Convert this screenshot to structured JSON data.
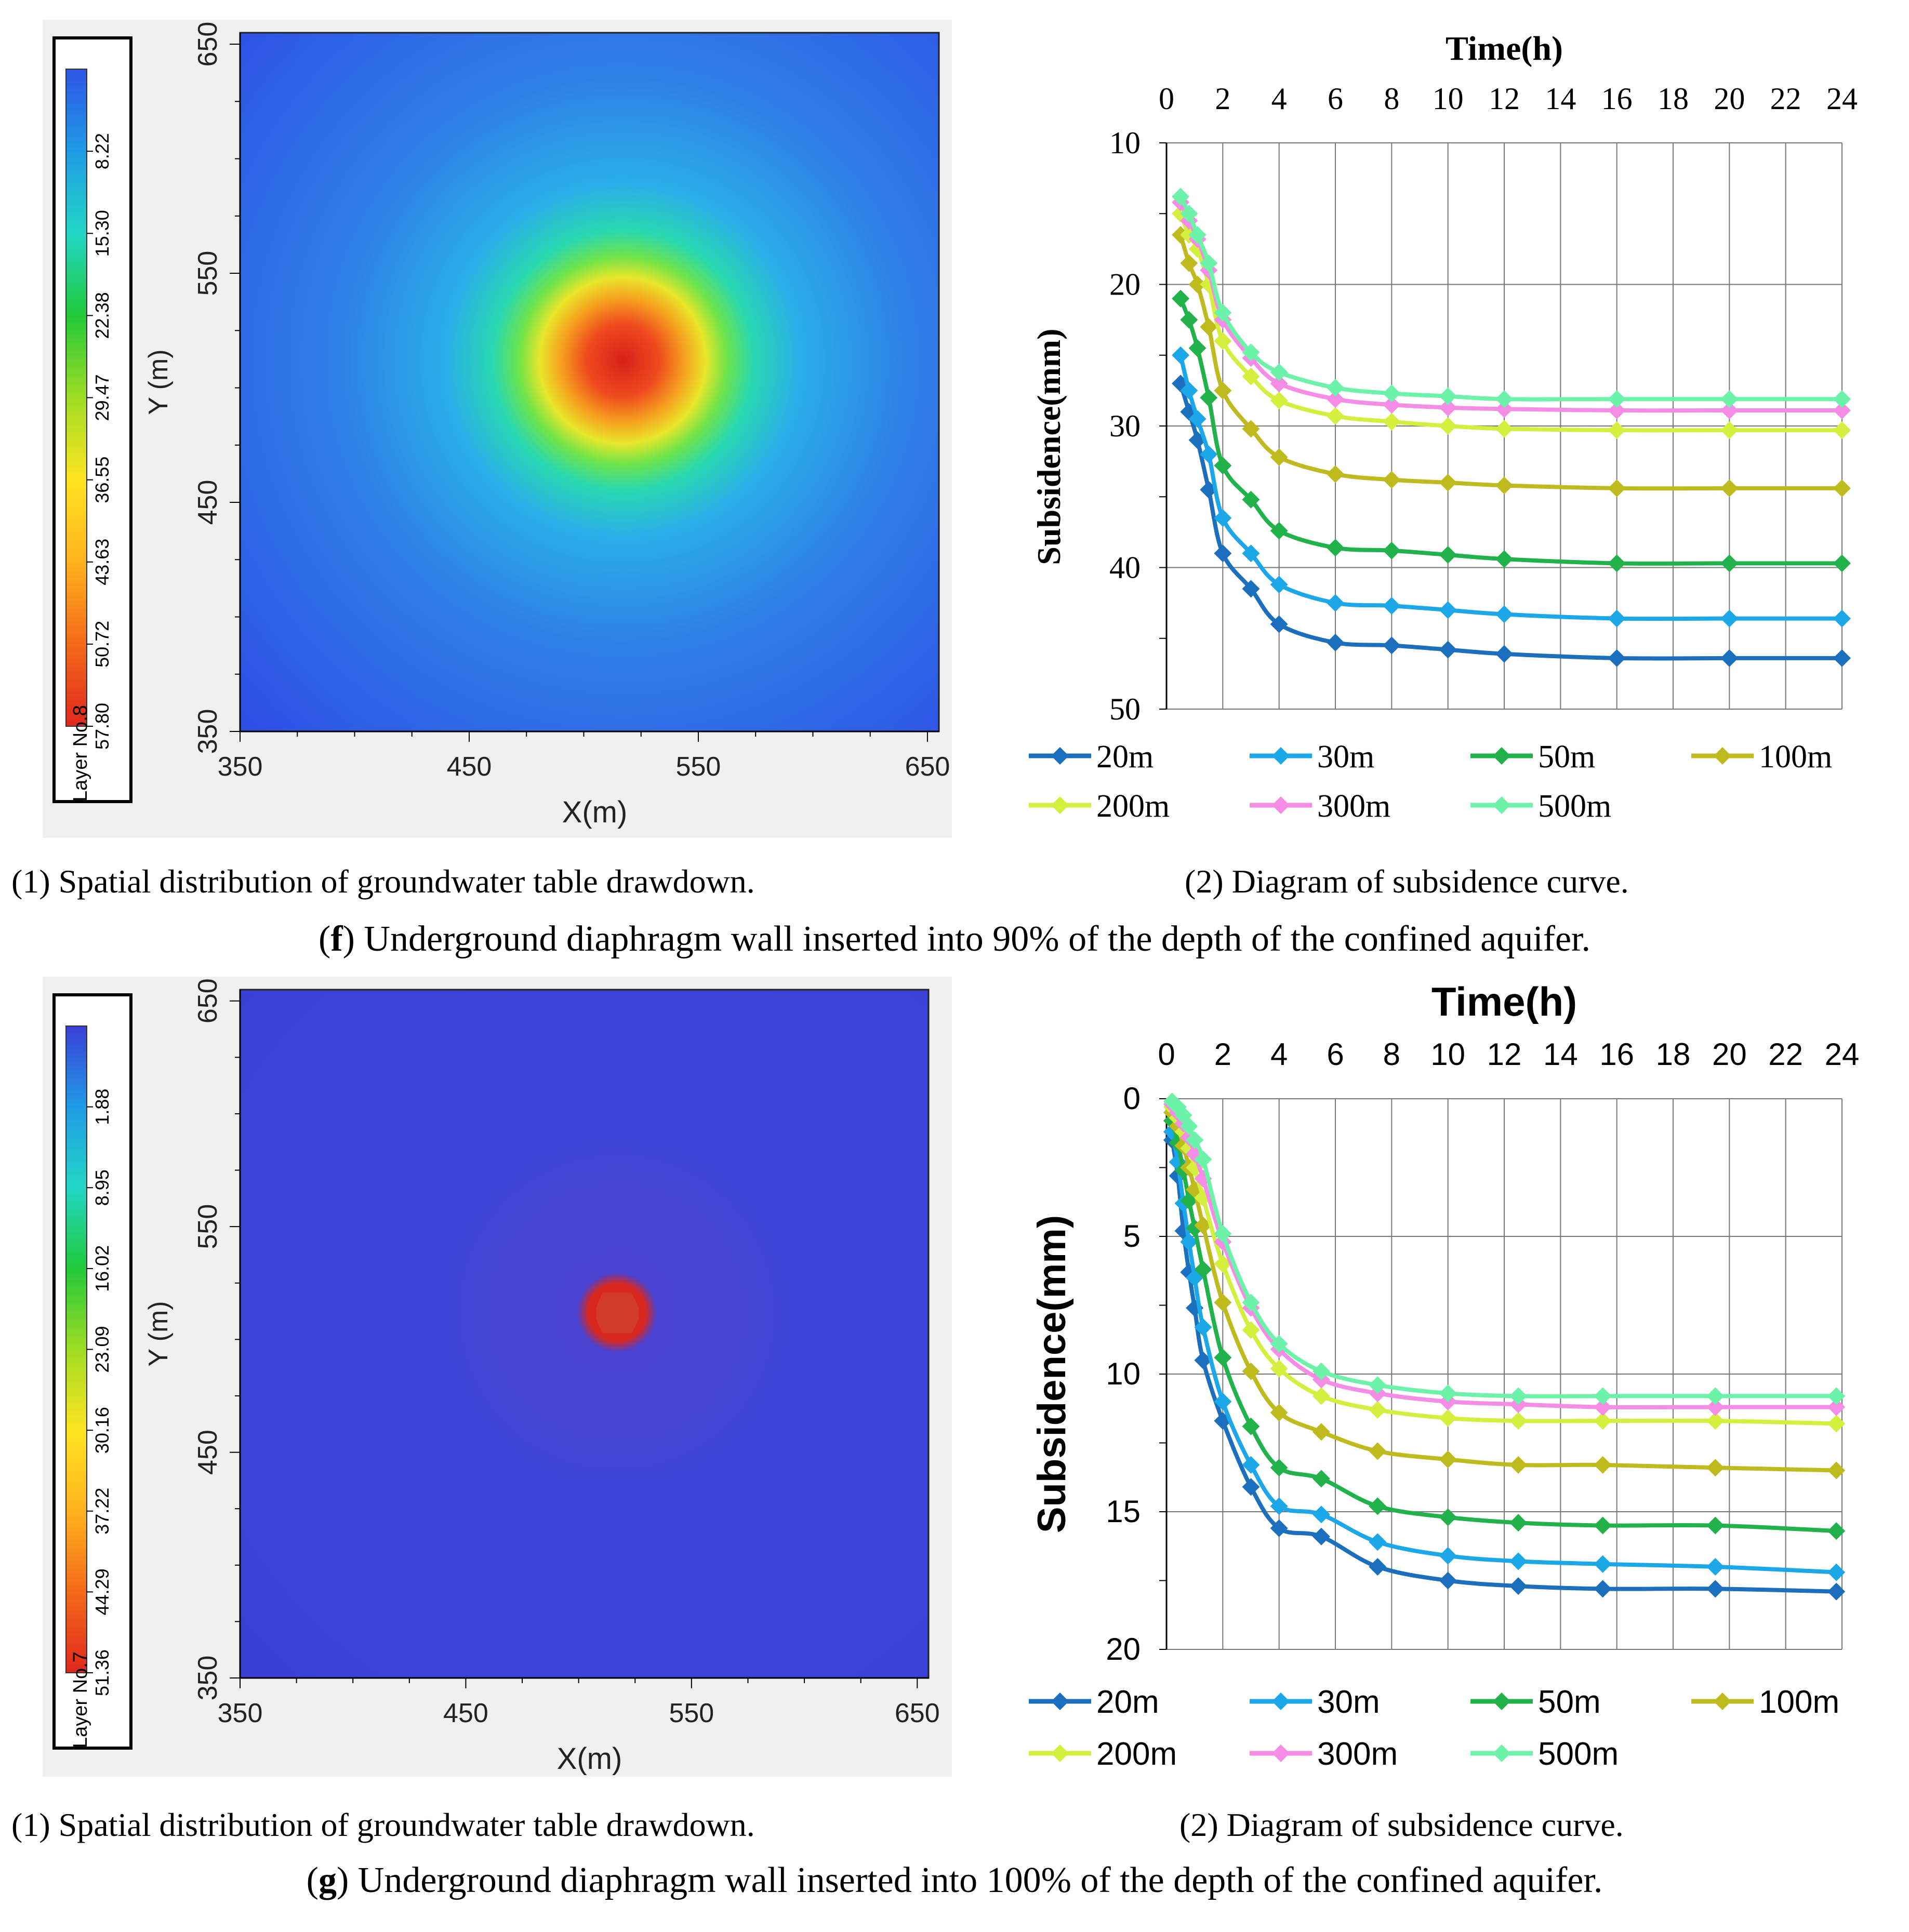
{
  "figures": [
    {
      "label": "f",
      "caption_rest": ") Underground diaphragm wall inserted into 90% of the depth of the confined aquifer.",
      "contour": {
        "caption": "(1) Spatial distribution of groundwater table drawdown.",
        "layer": "Layer No.8",
        "legend_values": [
          "57.80",
          "50.72",
          "43.63",
          "36.55",
          "29.47",
          "22.38",
          "15.30",
          "8.22"
        ],
        "legend_colors": [
          "#e0281e",
          "#f46a1a",
          "#ffb21e",
          "#ffe423",
          "#9fdc23",
          "#21c93a",
          "#22d6c5",
          "#1f9be6",
          "#2e55e5"
        ],
        "background_color": "#2e4fe6",
        "x_ticks": [
          "350",
          "450",
          "550",
          "650"
        ],
        "y_ticks": [
          "650",
          "550",
          "450",
          "350"
        ],
        "xlabel": "X(m)",
        "ylabel": "Y (m)",
        "axis_range": [
          350,
          655
        ],
        "center": [
          517,
          512
        ],
        "plume": "wide"
      },
      "chart_data": {
        "type": "line",
        "title": "Time(h)",
        "xlabel": "Time(h)",
        "ylabel": "Subsidence(mm)",
        "x_ticks": [
          0,
          2,
          4,
          6,
          8,
          10,
          12,
          14,
          16,
          18,
          20,
          22,
          24
        ],
        "y_ticks": [
          10,
          20,
          30,
          40,
          50
        ],
        "xlim": [
          0,
          24
        ],
        "ylim": [
          10,
          50
        ],
        "y_inverted": true,
        "series": [
          {
            "name": "20m",
            "color": "#1b6fbc",
            "x": [
              0.5,
              0.8,
              1.1,
              1.5,
              2.0,
              3.0,
              4.0,
              6.0,
              8.0,
              10.0,
              12.0,
              16.0,
              20.0,
              24.0
            ],
            "values": [
              27,
              29,
              31,
              34.5,
              39,
              41.5,
              44,
              45.3,
              45.5,
              45.8,
              46.1,
              46.4,
              46.4,
              46.4
            ]
          },
          {
            "name": "30m",
            "color": "#1ba7e8",
            "x": [
              0.5,
              0.8,
              1.1,
              1.5,
              2.0,
              3.0,
              4.0,
              6.0,
              8.0,
              10.0,
              12.0,
              16.0,
              20.0,
              24.0
            ],
            "values": [
              25,
              27.5,
              29.5,
              32,
              36.5,
              39,
              41.2,
              42.5,
              42.7,
              43,
              43.3,
              43.6,
              43.6,
              43.6
            ]
          },
          {
            "name": "50m",
            "color": "#22b24c",
            "x": [
              0.5,
              0.8,
              1.1,
              1.5,
              2.0,
              3.0,
              4.0,
              6.0,
              8.0,
              10.0,
              12.0,
              16.0,
              20.0,
              24.0
            ],
            "values": [
              21,
              22.5,
              24.5,
              28,
              32.8,
              35.2,
              37.4,
              38.6,
              38.8,
              39.1,
              39.4,
              39.7,
              39.7,
              39.7
            ]
          },
          {
            "name": "100m",
            "color": "#bfbb1f",
            "x": [
              0.5,
              0.8,
              1.1,
              1.5,
              2.0,
              3.0,
              4.0,
              6.0,
              8.0,
              10.0,
              12.0,
              16.0,
              20.0,
              24.0
            ],
            "values": [
              16.5,
              18.5,
              20,
              23,
              27.5,
              30.2,
              32.2,
              33.4,
              33.8,
              34,
              34.2,
              34.4,
              34.4,
              34.4
            ]
          },
          {
            "name": "200m",
            "color": "#d4ef3e",
            "x": [
              0.5,
              0.8,
              1.1,
              1.5,
              2.0,
              3.0,
              4.0,
              6.0,
              8.0,
              10.0,
              12.0,
              16.0,
              20.0,
              24.0
            ],
            "values": [
              15,
              16.5,
              17.5,
              20,
              24,
              26.5,
              28.2,
              29.3,
              29.7,
              30,
              30.2,
              30.3,
              30.3,
              30.3
            ]
          },
          {
            "name": "300m",
            "color": "#f58ce6",
            "x": [
              0.5,
              0.8,
              1.1,
              1.5,
              2.0,
              3.0,
              4.0,
              6.0,
              8.0,
              10.0,
              12.0,
              16.0,
              20.0,
              24.0
            ],
            "values": [
              14.2,
              15.5,
              16.8,
              19,
              22.5,
              25.2,
              27,
              28.1,
              28.5,
              28.7,
              28.8,
              28.9,
              28.9,
              28.9
            ]
          },
          {
            "name": "500m",
            "color": "#6cf2a9",
            "x": [
              0.5,
              0.8,
              1.1,
              1.5,
              2.0,
              3.0,
              4.0,
              6.0,
              8.0,
              10.0,
              12.0,
              16.0,
              20.0,
              24.0
            ],
            "values": [
              13.8,
              15,
              16.5,
              18.5,
              22,
              24.8,
              26.2,
              27.3,
              27.7,
              27.9,
              28.1,
              28.1,
              28.1,
              28.1
            ]
          }
        ],
        "caption": "(2) Diagram of subsidence curve."
      }
    },
    {
      "label": "g",
      "caption_rest": ") Underground diaphragm wall inserted into 100% of the depth of the confined aquifer.",
      "contour": {
        "caption": "(1) Spatial distribution of groundwater table drawdown.",
        "layer": "Layer No.7",
        "legend_values": [
          "51.36",
          "44.29",
          "37.22",
          "30.16",
          "23.09",
          "16.02",
          "8.95",
          "1.88"
        ],
        "legend_colors": [
          "#e0281e",
          "#f46a1a",
          "#ffb21e",
          "#ffe423",
          "#9fdc23",
          "#21c93a",
          "#22d6c5",
          "#1f9be6",
          "#3a3fd6"
        ],
        "background_color": "#3a3fd6",
        "x_ticks": [
          "350",
          "450",
          "550",
          "650"
        ],
        "y_ticks": [
          "650",
          "550",
          "450",
          "350"
        ],
        "xlabel": "X(m)",
        "ylabel": "Y (m)",
        "axis_range": [
          350,
          655
        ],
        "center": [
          517,
          512
        ],
        "plume": "sharp"
      },
      "chart_data": {
        "type": "line",
        "title": "Time(h)",
        "xlabel": "Time(h)",
        "ylabel": "Subsidence(mm)",
        "x_ticks": [
          0,
          2,
          4,
          6,
          8,
          10,
          12,
          14,
          16,
          18,
          20,
          22,
          24
        ],
        "y_ticks": [
          0,
          5,
          10,
          15,
          20
        ],
        "xlim": [
          0,
          24
        ],
        "ylim": [
          0,
          20
        ],
        "y_inverted": true,
        "series": [
          {
            "name": "20m",
            "color": "#1b6fbc",
            "x": [
              0.2,
              0.4,
              0.6,
              0.8,
              1.0,
              1.3,
              2.0,
              3.0,
              4.0,
              5.5,
              7.5,
              10.0,
              12.5,
              15.5,
              19.5,
              23.8
            ],
            "values": [
              1.5,
              2.8,
              4.8,
              6.3,
              7.6,
              9.5,
              11.7,
              14.1,
              15.6,
              15.9,
              17.0,
              17.5,
              17.7,
              17.8,
              17.8,
              17.9
            ]
          },
          {
            "name": "30m",
            "color": "#1ba7e8",
            "x": [
              0.2,
              0.4,
              0.6,
              0.8,
              1.0,
              1.3,
              2.0,
              3.0,
              4.0,
              5.5,
              7.5,
              10.0,
              12.5,
              15.5,
              19.5,
              23.8
            ],
            "values": [
              1.2,
              2.3,
              3.8,
              5.2,
              6.5,
              8.3,
              11.0,
              13.3,
              14.8,
              15.1,
              16.1,
              16.6,
              16.8,
              16.9,
              17.0,
              17.2
            ]
          },
          {
            "name": "50m",
            "color": "#22b24c",
            "x": [
              0.2,
              0.4,
              0.6,
              0.8,
              1.0,
              1.3,
              2.0,
              3.0,
              4.0,
              5.5,
              7.5,
              10.0,
              12.5,
              15.5,
              19.5,
              23.8
            ],
            "values": [
              0.8,
              1.6,
              2.6,
              3.7,
              4.7,
              6.2,
              9.4,
              11.9,
              13.4,
              13.8,
              14.8,
              15.2,
              15.4,
              15.5,
              15.5,
              15.7
            ]
          },
          {
            "name": "100m",
            "color": "#bfbb1f",
            "x": [
              0.2,
              0.4,
              0.6,
              0.8,
              1.0,
              1.3,
              2.0,
              3.0,
              4.0,
              5.5,
              7.5,
              10.0,
              12.5,
              15.5,
              19.5,
              23.8
            ],
            "values": [
              0.5,
              1.0,
              1.7,
              2.5,
              3.3,
              4.6,
              7.4,
              9.9,
              11.4,
              12.1,
              12.8,
              13.1,
              13.3,
              13.3,
              13.4,
              13.5
            ]
          },
          {
            "name": "200m",
            "color": "#d4ef3e",
            "x": [
              0.2,
              0.4,
              0.6,
              0.8,
              1.0,
              1.3,
              2.0,
              3.0,
              4.0,
              5.5,
              7.5,
              10.0,
              12.5,
              15.5,
              19.5,
              23.8
            ],
            "values": [
              0.3,
              0.7,
              1.2,
              1.8,
              2.5,
              3.6,
              6.0,
              8.4,
              9.8,
              10.8,
              11.3,
              11.6,
              11.7,
              11.7,
              11.7,
              11.8
            ]
          },
          {
            "name": "300m",
            "color": "#f58ce6",
            "x": [
              0.2,
              0.4,
              0.6,
              0.8,
              1.0,
              1.3,
              2.0,
              3.0,
              4.0,
              5.5,
              7.5,
              10.0,
              12.5,
              15.5,
              19.5,
              23.8
            ],
            "values": [
              0.2,
              0.5,
              0.9,
              1.4,
              2.0,
              2.9,
              5.2,
              7.6,
              9.1,
              10.2,
              10.7,
              11.0,
              11.1,
              11.2,
              11.2,
              11.2
            ]
          },
          {
            "name": "500m",
            "color": "#6cf2a9",
            "x": [
              0.2,
              0.4,
              0.6,
              0.8,
              1.0,
              1.3,
              2.0,
              3.0,
              4.0,
              5.5,
              7.5,
              10.0,
              12.5,
              15.5,
              19.5,
              23.8
            ],
            "values": [
              0.1,
              0.3,
              0.6,
              1.0,
              1.5,
              2.2,
              4.9,
              7.4,
              8.9,
              9.9,
              10.4,
              10.7,
              10.8,
              10.8,
              10.8,
              10.8
            ]
          }
        ],
        "caption": "(2) Diagram of subsidence curve."
      }
    }
  ]
}
